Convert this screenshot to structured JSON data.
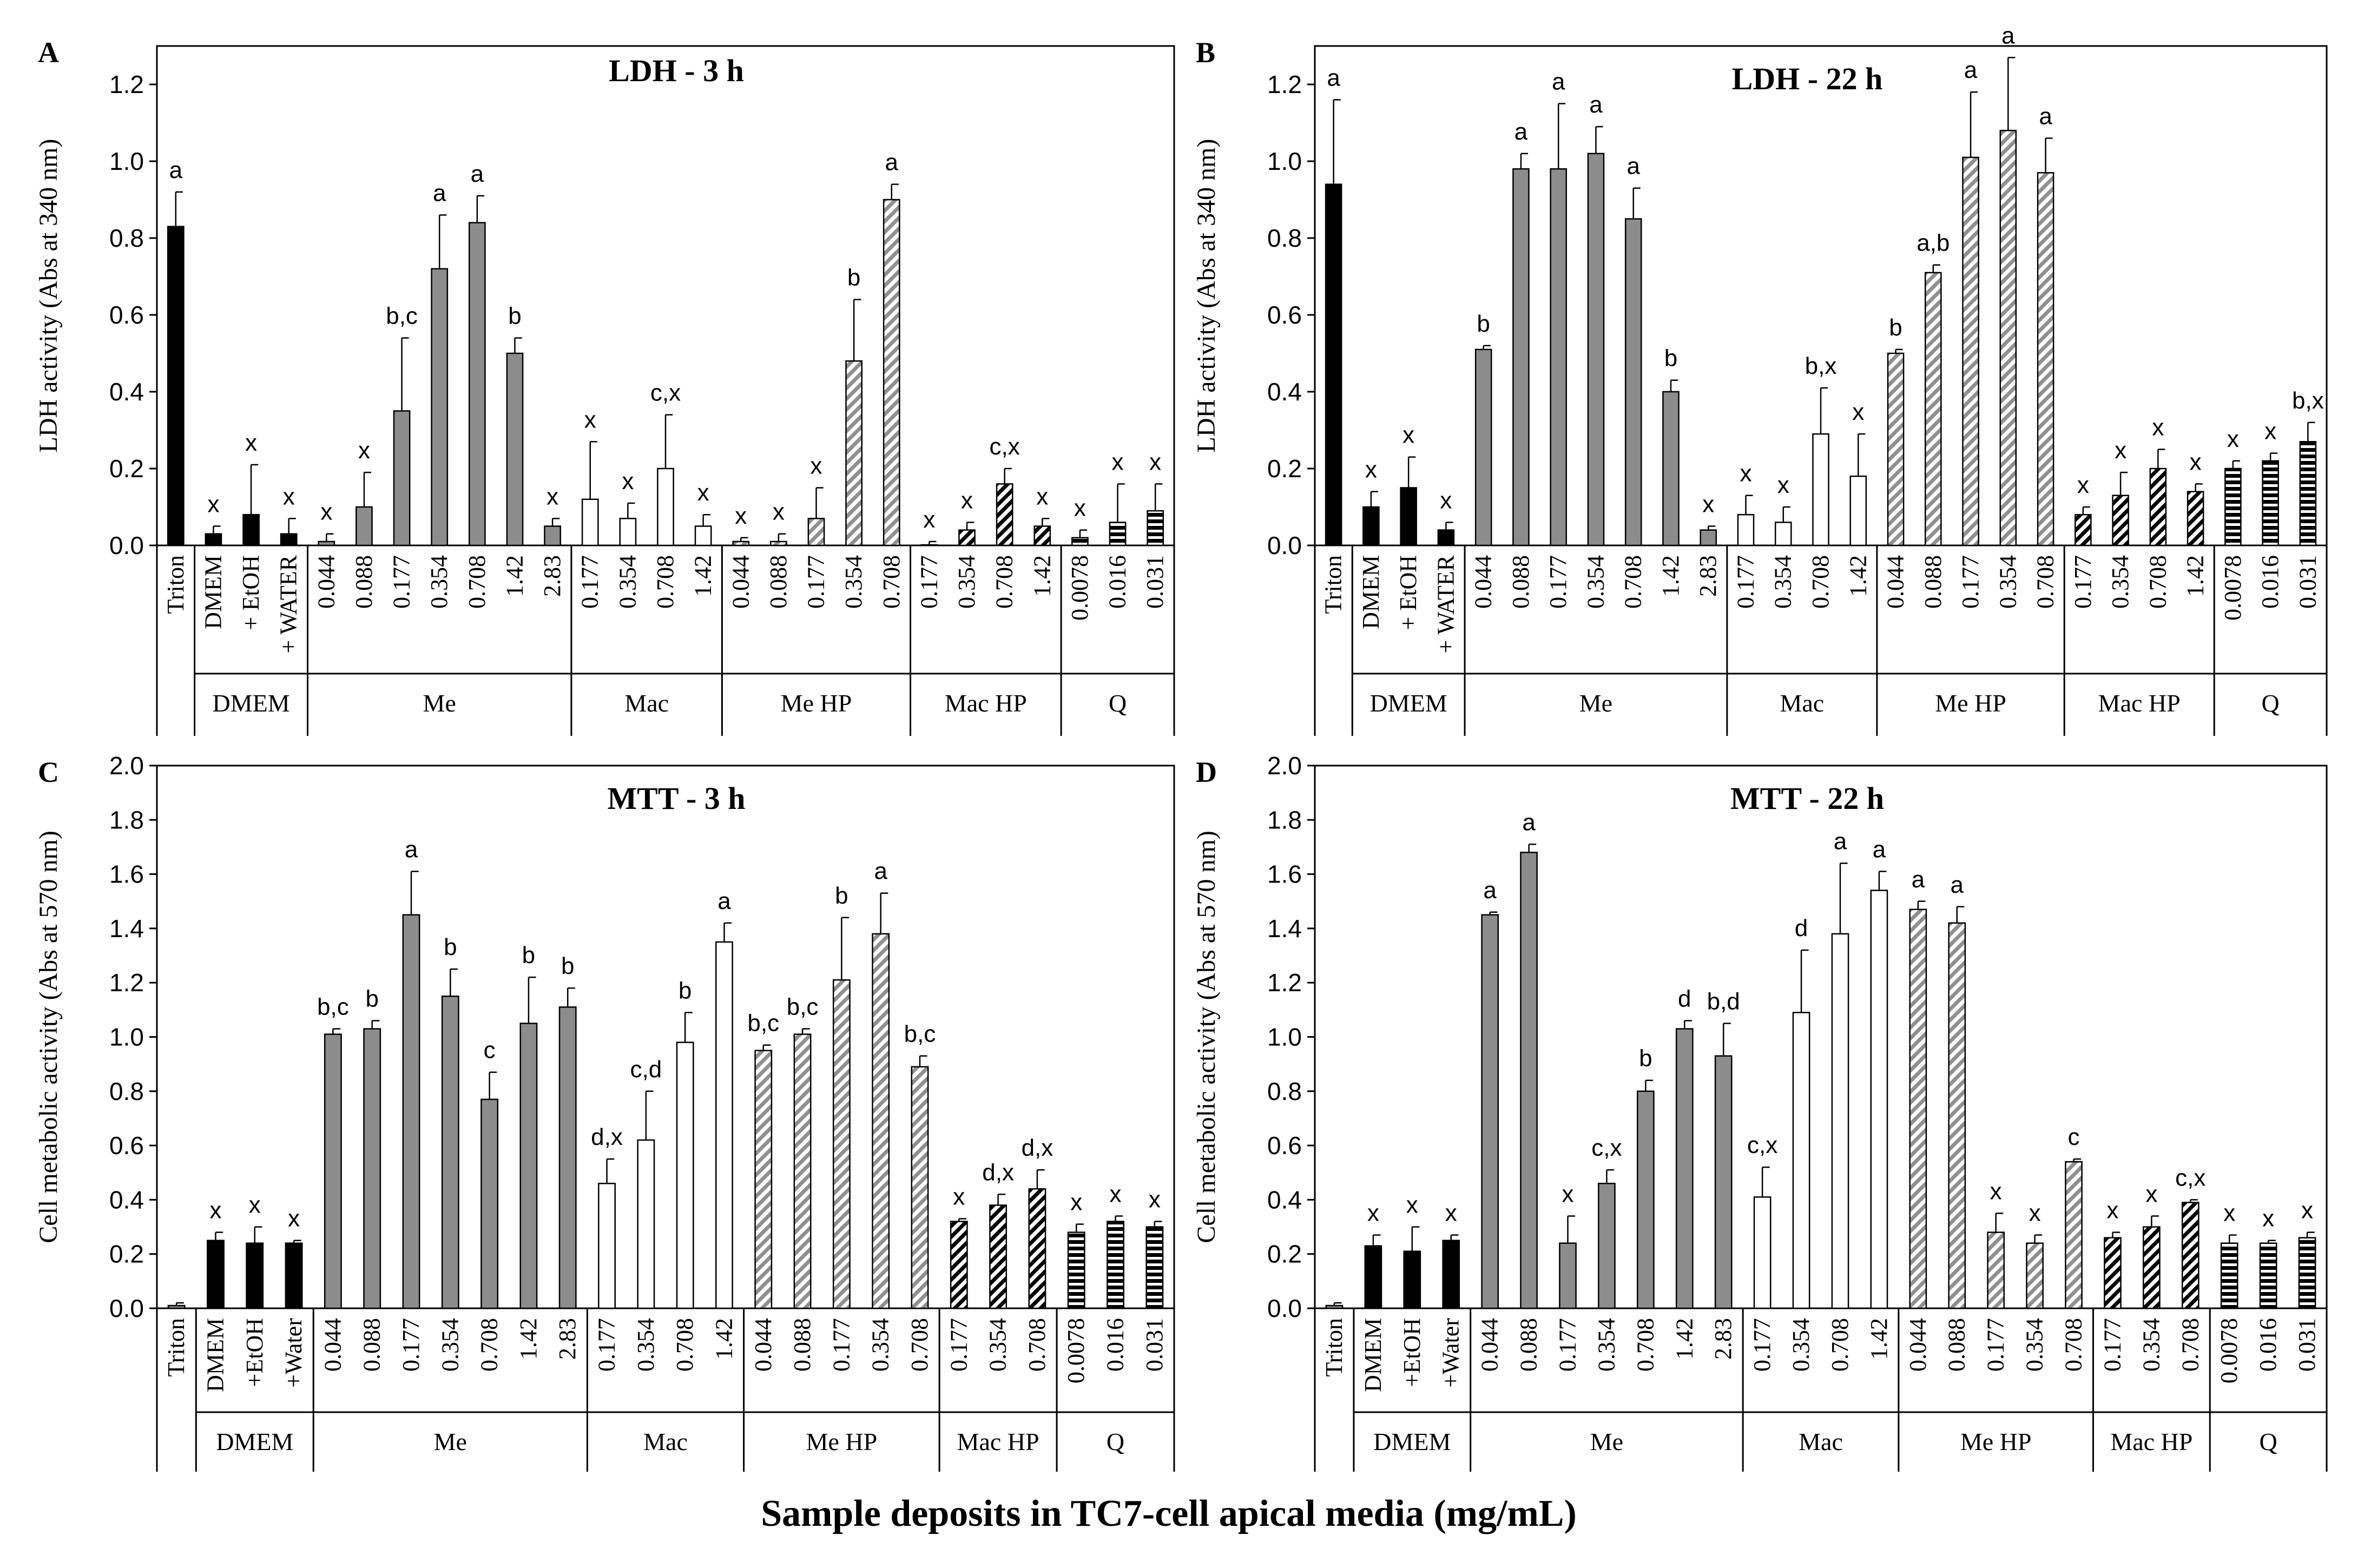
{
  "figure": {
    "xlabel": "Sample deposits in TC7-cell apical media (mg/mL)"
  },
  "chart_data": [
    {
      "type": "bar",
      "panel": "A",
      "title": "LDH - 3 h",
      "ylabel": "LDH activity (Abs at 340 nm)",
      "ylim": [
        0,
        1.3
      ],
      "yticks": [
        "0.0",
        "0.2",
        "0.4",
        "0.6",
        "0.8",
        "1.0",
        "1.2"
      ],
      "grid": false,
      "categories": [
        "Triton",
        "DMEM",
        "+ EtOH",
        "+ WATER",
        "0.044",
        "0.088",
        "0.177",
        "0.354",
        "0.708",
        "1.42",
        "2.83",
        "0.177",
        "0.354",
        "0.708",
        "1.42",
        "0.044",
        "0.088",
        "0.177",
        "0.354",
        "0.708",
        "0.177",
        "0.354",
        "0.708",
        "1.42",
        "0.0078",
        "0.016",
        "0.031"
      ],
      "groups": [
        {
          "label": "",
          "count": 1
        },
        {
          "label": "DMEM",
          "count": 3
        },
        {
          "label": "Me",
          "count": 7
        },
        {
          "label": "Mac",
          "count": 4
        },
        {
          "label": "Me HP",
          "count": 5
        },
        {
          "label": "Mac HP",
          "count": 4
        },
        {
          "label": "Q",
          "count": 3
        }
      ],
      "values": [
        0.83,
        0.03,
        0.08,
        0.03,
        0.01,
        0.1,
        0.35,
        0.72,
        0.84,
        0.5,
        0.05,
        0.12,
        0.07,
        0.2,
        0.05,
        0.01,
        0.01,
        0.07,
        0.48,
        0.9,
        0.0,
        0.04,
        0.16,
        0.05,
        0.02,
        0.06,
        0.09
      ],
      "errors": [
        0.09,
        0.02,
        0.13,
        0.04,
        0.02,
        0.09,
        0.19,
        0.14,
        0.07,
        0.04,
        0.02,
        0.15,
        0.04,
        0.14,
        0.03,
        0.01,
        0.02,
        0.08,
        0.16,
        0.04,
        0.01,
        0.02,
        0.04,
        0.02,
        0.02,
        0.1,
        0.07
      ],
      "significance": [
        "a",
        "x",
        "x",
        "x",
        "x",
        "x",
        "b,c",
        "a",
        "a",
        "b",
        "x",
        "x",
        "x",
        "c,x",
        "x",
        "x",
        "x",
        "x",
        "b",
        "a",
        "x",
        "x",
        "c,x",
        "x",
        "x",
        "x",
        "x"
      ]
    },
    {
      "type": "bar",
      "panel": "B",
      "title": "LDH - 22 h",
      "ylabel": "LDH activity (Abs at 340 nm)",
      "ylim": [
        0,
        1.3
      ],
      "yticks": [
        "0.0",
        "0.2",
        "0.4",
        "0.6",
        "0.8",
        "1.0",
        "1.2"
      ],
      "grid": false,
      "categories": [
        "Triton",
        "DMEM",
        "+ EtOH",
        "+ WATER",
        "0.044",
        "0.088",
        "0.177",
        "0.354",
        "0.708",
        "1.42",
        "2.83",
        "0.177",
        "0.354",
        "0.708",
        "1.42",
        "0.044",
        "0.088",
        "0.177",
        "0.354",
        "0.708",
        "0.177",
        "0.354",
        "0.708",
        "1.42",
        "0.0078",
        "0.016",
        "0.031"
      ],
      "groups": [
        {
          "label": "",
          "count": 1
        },
        {
          "label": "DMEM",
          "count": 3
        },
        {
          "label": "Me",
          "count": 7
        },
        {
          "label": "Mac",
          "count": 4
        },
        {
          "label": "Me HP",
          "count": 5
        },
        {
          "label": "Mac HP",
          "count": 4
        },
        {
          "label": "Q",
          "count": 3
        }
      ],
      "values": [
        0.94,
        0.1,
        0.15,
        0.04,
        0.51,
        0.98,
        0.98,
        1.02,
        0.85,
        0.4,
        0.04,
        0.08,
        0.06,
        0.29,
        0.18,
        0.5,
        0.71,
        1.01,
        1.08,
        0.97,
        0.08,
        0.13,
        0.2,
        0.14,
        0.2,
        0.22,
        0.27
      ],
      "errors": [
        0.22,
        0.04,
        0.08,
        0.02,
        0.01,
        0.04,
        0.17,
        0.07,
        0.08,
        0.03,
        0.01,
        0.05,
        0.04,
        0.12,
        0.11,
        0.01,
        0.02,
        0.17,
        0.19,
        0.09,
        0.02,
        0.06,
        0.05,
        0.02,
        0.02,
        0.02,
        0.05
      ],
      "significance": [
        "a",
        "x",
        "x",
        "x",
        "b",
        "a",
        "a",
        "a",
        "a",
        "b",
        "x",
        "x",
        "x",
        "b,x",
        "x",
        "b",
        "a,b",
        "a",
        "a",
        "a",
        "x",
        "x",
        "x",
        "x",
        "x",
        "x",
        "b,x"
      ]
    },
    {
      "type": "bar",
      "panel": "C",
      "title": "MTT -  3 h",
      "ylabel": "Cell metabolic activity (Abs at 570 nm)",
      "ylim": [
        0,
        2.0
      ],
      "yticks": [
        "0.0",
        "0.2",
        "0.4",
        "0.6",
        "0.8",
        "1.0",
        "1.2",
        "1.4",
        "1.6",
        "1.8",
        "2.0"
      ],
      "grid": false,
      "categories": [
        "Triton",
        "DMEM",
        "+EtOH",
        "+Water",
        "0.044",
        "0.088",
        "0.177",
        "0.354",
        "0.708",
        "1.42",
        "2.83",
        "0.177",
        "0.354",
        "0.708",
        "1.42",
        "0.044",
        "0.088",
        "0.177",
        "0.354",
        "0.708",
        "0.177",
        "0.354",
        "0.708",
        "0.0078",
        "0.016",
        "0.031"
      ],
      "groups": [
        {
          "label": "",
          "count": 1
        },
        {
          "label": "DMEM",
          "count": 3
        },
        {
          "label": "Me",
          "count": 7
        },
        {
          "label": "Mac",
          "count": 4
        },
        {
          "label": "Me HP",
          "count": 5
        },
        {
          "label": "Mac HP",
          "count": 3
        },
        {
          "label": "Q",
          "count": 3
        }
      ],
      "values": [
        0.01,
        0.25,
        0.24,
        0.24,
        1.01,
        1.03,
        1.45,
        1.15,
        0.77,
        1.05,
        1.11,
        0.46,
        0.62,
        0.98,
        1.35,
        0.95,
        1.01,
        1.21,
        1.38,
        0.89,
        0.32,
        0.38,
        0.44,
        0.28,
        0.32,
        0.3
      ],
      "errors": [
        0.01,
        0.03,
        0.06,
        0.01,
        0.02,
        0.03,
        0.16,
        0.1,
        0.1,
        0.17,
        0.07,
        0.09,
        0.18,
        0.11,
        0.07,
        0.02,
        0.02,
        0.23,
        0.15,
        0.04,
        0.01,
        0.04,
        0.07,
        0.03,
        0.02,
        0.02
      ],
      "significance": [
        "",
        "x",
        "x",
        "x",
        "b,c",
        "b",
        "a",
        "b",
        "c",
        "b",
        "b",
        "d,x",
        "c,d",
        "b",
        "a",
        "b,c",
        "b,c",
        "b",
        "a",
        "b,c",
        "x",
        "d,x",
        "d,x",
        "x",
        "x",
        "x"
      ]
    },
    {
      "type": "bar",
      "panel": "D",
      "title": "MTT -  22 h",
      "ylabel": "Cell metabolic activity (Abs at 570 nm)",
      "ylim": [
        0,
        2.0
      ],
      "yticks": [
        "0.0",
        "0.2",
        "0.4",
        "0.6",
        "0.8",
        "1.0",
        "1.2",
        "1.4",
        "1.6",
        "1.8",
        "2.0"
      ],
      "grid": false,
      "categories": [
        "Triton",
        "DMEM",
        "+EtOH",
        "+Water",
        "0.044",
        "0.088",
        "0.177",
        "0.354",
        "0.708",
        "1.42",
        "2.83",
        "0.177",
        "0.354",
        "0.708",
        "1.42",
        "0.044",
        "0.088",
        "0.177",
        "0.354",
        "0.708",
        "0.177",
        "0.354",
        "0.708",
        "0.0078",
        "0.016",
        "0.031"
      ],
      "groups": [
        {
          "label": "",
          "count": 1
        },
        {
          "label": "DMEM",
          "count": 3
        },
        {
          "label": "Me",
          "count": 7
        },
        {
          "label": "Mac",
          "count": 4
        },
        {
          "label": "Me HP",
          "count": 5
        },
        {
          "label": "Mac HP",
          "count": 3
        },
        {
          "label": "Q",
          "count": 3
        }
      ],
      "values": [
        0.01,
        0.23,
        0.21,
        0.25,
        1.45,
        1.68,
        0.24,
        0.46,
        0.8,
        1.03,
        0.93,
        0.41,
        1.09,
        1.38,
        1.54,
        1.47,
        1.42,
        0.28,
        0.24,
        0.54,
        0.26,
        0.3,
        0.39,
        0.24,
        0.24,
        0.26
      ],
      "errors": [
        0.01,
        0.04,
        0.09,
        0.02,
        0.01,
        0.03,
        0.1,
        0.05,
        0.04,
        0.03,
        0.12,
        0.11,
        0.23,
        0.26,
        0.07,
        0.03,
        0.06,
        0.07,
        0.03,
        0.01,
        0.02,
        0.04,
        0.01,
        0.03,
        0.01,
        0.02
      ],
      "significance": [
        "",
        "x",
        "x",
        "x",
        "a",
        "a",
        "x",
        "c,x",
        "b",
        "d",
        "b,d",
        "c,x",
        "d",
        "a",
        "a",
        "a",
        "a",
        "x",
        "x",
        "c",
        "x",
        "x",
        "c,x",
        "x",
        "x",
        "x"
      ]
    }
  ]
}
